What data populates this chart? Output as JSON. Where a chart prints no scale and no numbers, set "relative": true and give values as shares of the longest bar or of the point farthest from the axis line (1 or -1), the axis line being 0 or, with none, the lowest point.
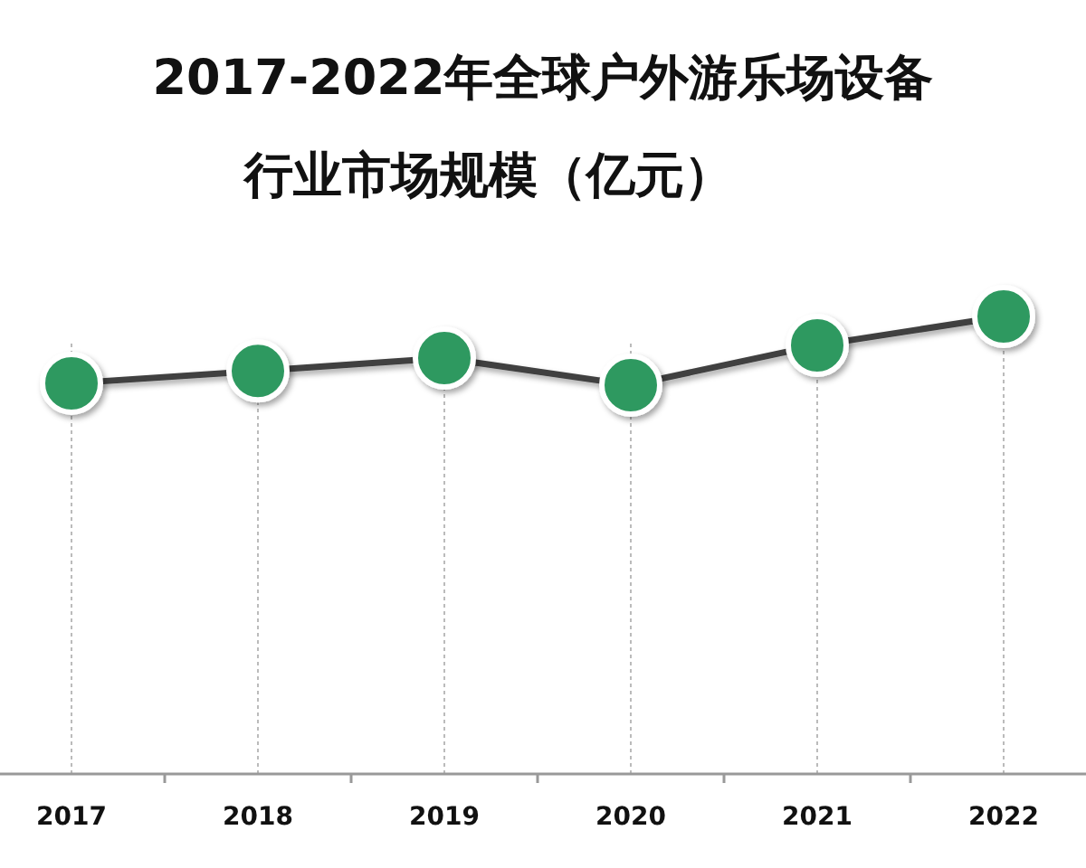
{
  "chart_data": {
    "type": "line",
    "title": "2017-2022年全球户外游乐场设备",
    "subtitle": "行业市场规模（亿元）",
    "categories": [
      "2017",
      "2018",
      "2019",
      "2020",
      "2021",
      "2022"
    ],
    "relative": true,
    "series": [
      {
        "color": "#2e9960",
        "values": [
          0.854,
          0.881,
          0.909,
          0.85,
          0.937,
          1
        ]
      }
    ],
    "marker": "circle",
    "line_style": "solid",
    "grid": "x"
  }
}
